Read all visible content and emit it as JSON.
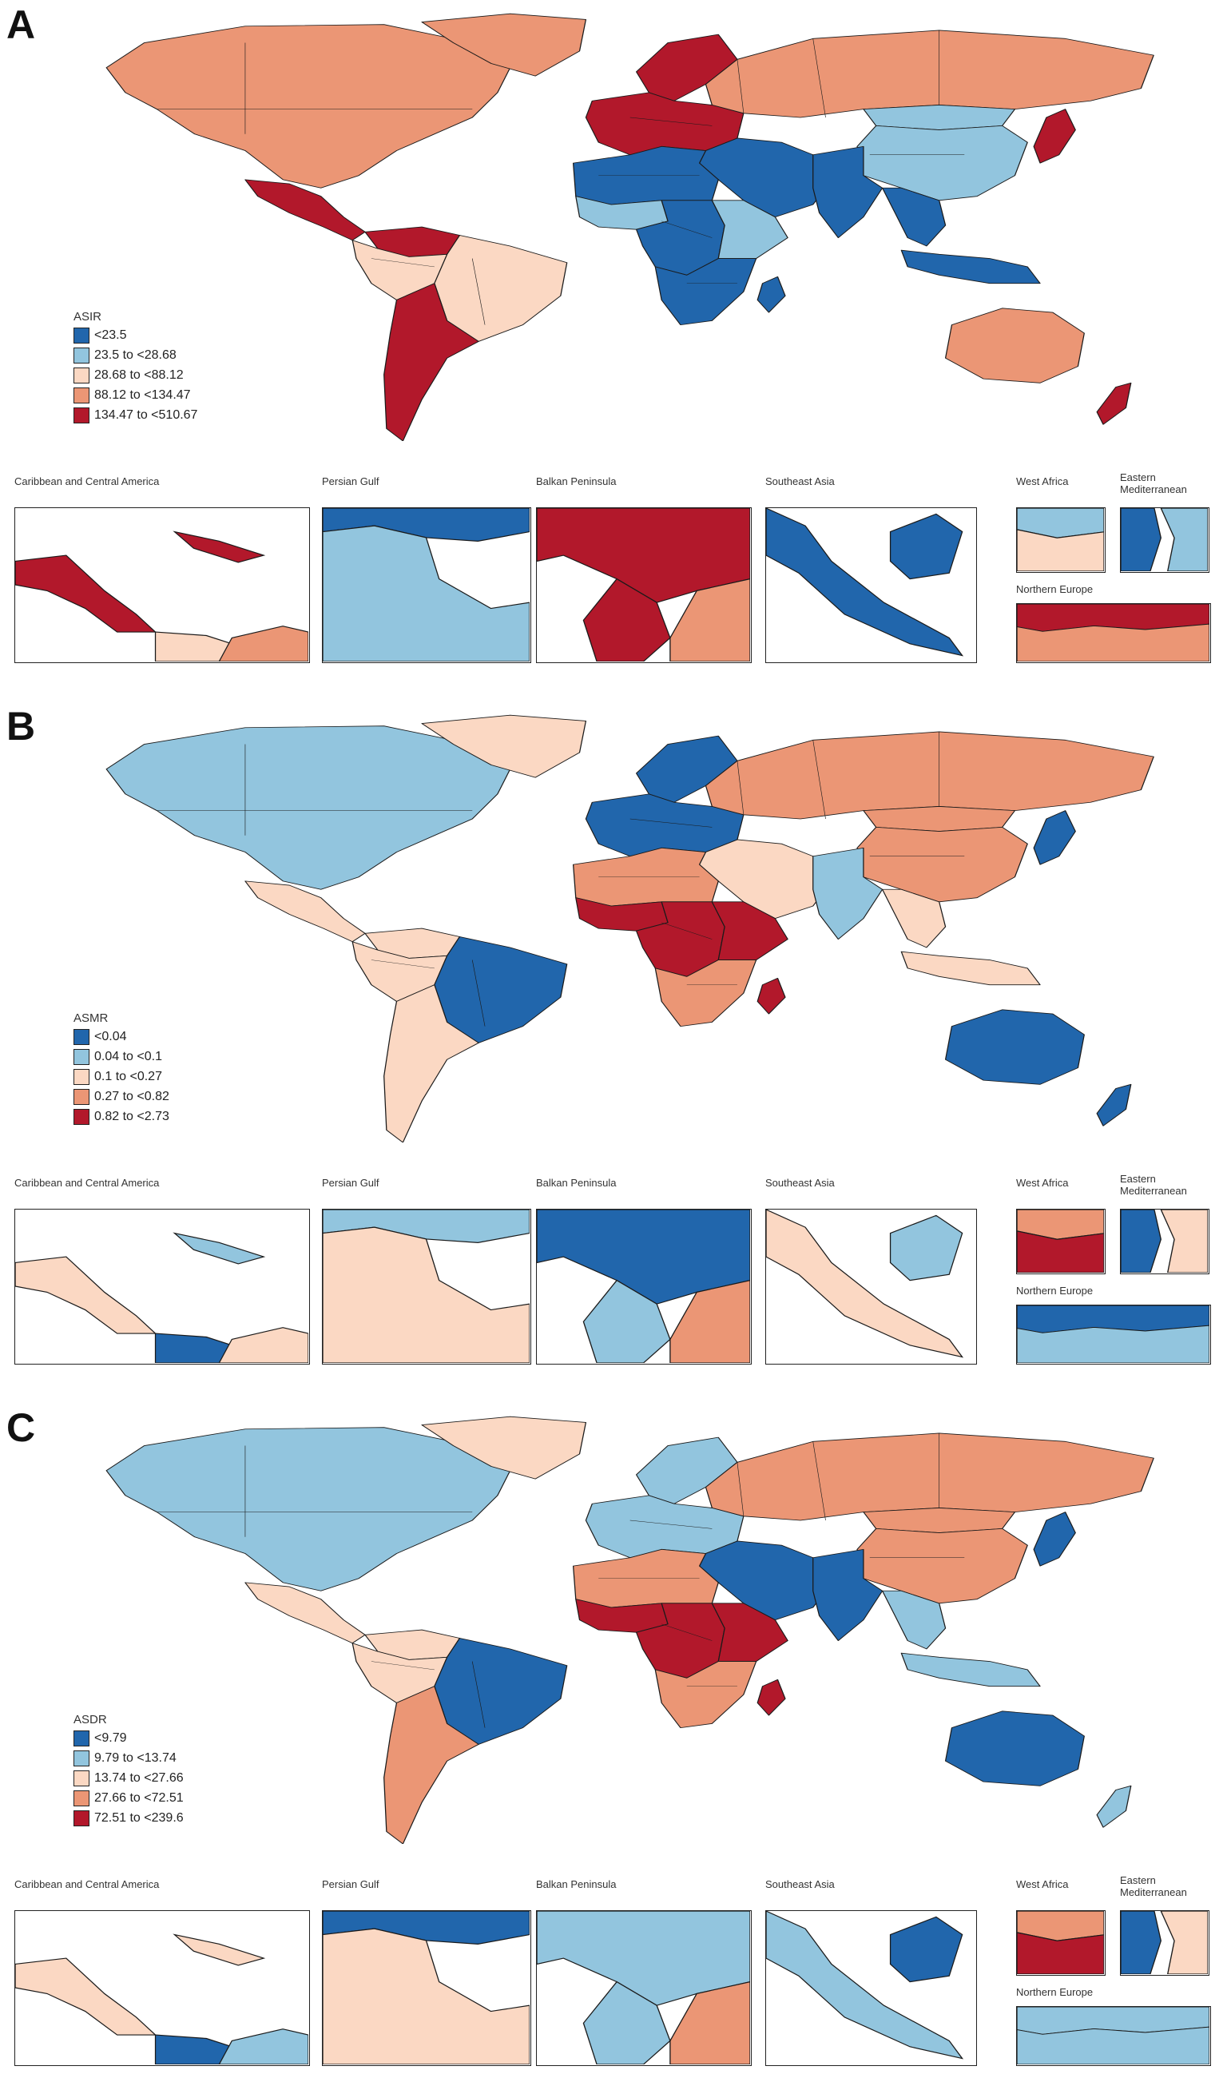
{
  "colors": {
    "c1": "#2166ac",
    "c2": "#92c5de",
    "c3": "#fbd8c3",
    "c4": "#eb9675",
    "c5": "#b2182b",
    "nodata": "#ffffff",
    "border": "#1a1a1a"
  },
  "inset_titles": {
    "caribbean": "Caribbean and Central America",
    "persian_gulf": "Persian Gulf",
    "balkan": "Balkan Peninsula",
    "southeast_asia": "Southeast Asia",
    "west_africa": "West Africa",
    "eastern_med_line1": "Eastern",
    "eastern_med_line2": "Mediterranean",
    "northern_europe": "Northern Europe"
  },
  "panels": [
    {
      "letter": "A",
      "legend_title": "ASIR",
      "legend": [
        "<23.5",
        "23.5 to <28.68",
        "28.68 to <88.12",
        "88.12 to <134.47",
        "134.47 to <510.67"
      ],
      "regions": {
        "north_america": 4,
        "greenland": 4,
        "mexico_central": 5,
        "south_america_north": 3,
        "brazil": 3,
        "venezuela": 5,
        "southern_cone": 5,
        "western_europe": 5,
        "scandinavia": 5,
        "russia": 4,
        "middle_east": 1,
        "north_africa": 1,
        "west_africa": 2,
        "central_africa": 1,
        "east_africa": 2,
        "southern_africa": 1,
        "madagascar": 1,
        "india": 1,
        "china": 2,
        "mongolia": 2,
        "japan": 5,
        "southeast_asia": 1,
        "indonesia": 1,
        "australia": 4,
        "new_zealand": 5
      },
      "insets": {
        "caribbean": [
          5,
          5,
          3,
          4
        ],
        "persian_gulf": [
          1,
          2
        ],
        "balkan": [
          5,
          5,
          4
        ],
        "southeast_asia": [
          1,
          1
        ],
        "west_africa": [
          2,
          3
        ],
        "eastern_med": [
          1,
          2
        ],
        "northern_europe": [
          5,
          4
        ]
      }
    },
    {
      "letter": "B",
      "legend_title": "ASMR",
      "legend": [
        "<0.04",
        "0.04 to <0.1",
        "0.1 to <0.27",
        "0.27 to <0.82",
        "0.82 to <2.73"
      ],
      "regions": {
        "north_america": 2,
        "greenland": 3,
        "mexico_central": 3,
        "south_america_north": 3,
        "brazil": 1,
        "venezuela": 3,
        "southern_cone": 3,
        "western_europe": 1,
        "scandinavia": 1,
        "russia": 4,
        "middle_east": 3,
        "north_africa": 4,
        "west_africa": 5,
        "central_africa": 5,
        "east_africa": 5,
        "southern_africa": 4,
        "madagascar": 5,
        "india": 2,
        "china": 4,
        "mongolia": 4,
        "japan": 1,
        "southeast_asia": 3,
        "indonesia": 3,
        "australia": 1,
        "new_zealand": 1
      },
      "insets": {
        "caribbean": [
          3,
          2,
          1,
          3
        ],
        "persian_gulf": [
          2,
          3
        ],
        "balkan": [
          1,
          2,
          4
        ],
        "southeast_asia": [
          3,
          2
        ],
        "west_africa": [
          4,
          5
        ],
        "eastern_med": [
          1,
          3
        ],
        "northern_europe": [
          1,
          2
        ]
      }
    },
    {
      "letter": "C",
      "legend_title": "ASDR",
      "legend": [
        "<9.79",
        "9.79 to <13.74",
        "13.74 to <27.66",
        "27.66 to <72.51",
        "72.51 to <239.6"
      ],
      "regions": {
        "north_america": 2,
        "greenland": 3,
        "mexico_central": 3,
        "south_america_north": 3,
        "brazil": 1,
        "venezuela": 3,
        "southern_cone": 4,
        "western_europe": 2,
        "scandinavia": 2,
        "russia": 4,
        "middle_east": 1,
        "north_africa": 4,
        "west_africa": 5,
        "central_africa": 5,
        "east_africa": 5,
        "southern_africa": 4,
        "madagascar": 5,
        "india": 1,
        "china": 4,
        "mongolia": 4,
        "japan": 1,
        "southeast_asia": 2,
        "indonesia": 2,
        "australia": 1,
        "new_zealand": 2
      },
      "insets": {
        "caribbean": [
          3,
          3,
          1,
          2
        ],
        "persian_gulf": [
          1,
          3
        ],
        "balkan": [
          2,
          2,
          4
        ],
        "southeast_asia": [
          2,
          1
        ],
        "west_africa": [
          4,
          5
        ],
        "eastern_med": [
          1,
          3
        ],
        "northern_europe": [
          2,
          2
        ]
      }
    }
  ]
}
